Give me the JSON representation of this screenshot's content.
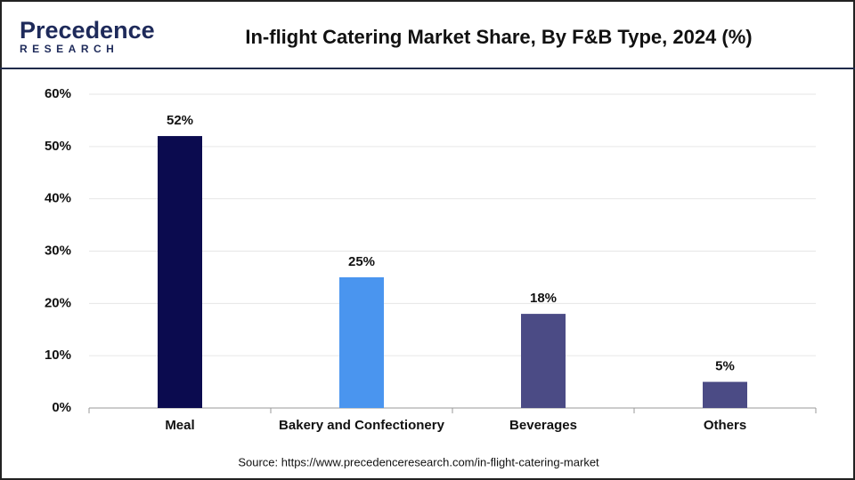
{
  "logo": {
    "name": "Precedence",
    "tagline": "RESEARCH"
  },
  "chart_data": {
    "type": "bar",
    "title": "In-flight Catering Market Share, By F&B Type, 2024 (%)",
    "categories": [
      "Meal",
      "Bakery and Confectionery",
      "Beverages",
      "Others"
    ],
    "values": [
      52,
      25,
      18,
      5
    ],
    "value_labels": [
      "52%",
      "25%",
      "18%",
      "5%"
    ],
    "colors": [
      "#0b0b4f",
      "#4a95ef",
      "#4b4b85",
      "#4b4b85"
    ],
    "ylim": [
      0,
      60
    ],
    "yticks": [
      {
        "value": 0,
        "label": "0%"
      },
      {
        "value": 10,
        "label": "10%"
      },
      {
        "value": 20,
        "label": "20%"
      },
      {
        "value": 30,
        "label": "30%"
      },
      {
        "value": 40,
        "label": "40%"
      },
      {
        "value": 50,
        "label": "50%"
      },
      {
        "value": 60,
        "label": "60%"
      }
    ],
    "grid": true,
    "source": "Source: https://www.precedenceresearch.com/in-flight-catering-market"
  }
}
